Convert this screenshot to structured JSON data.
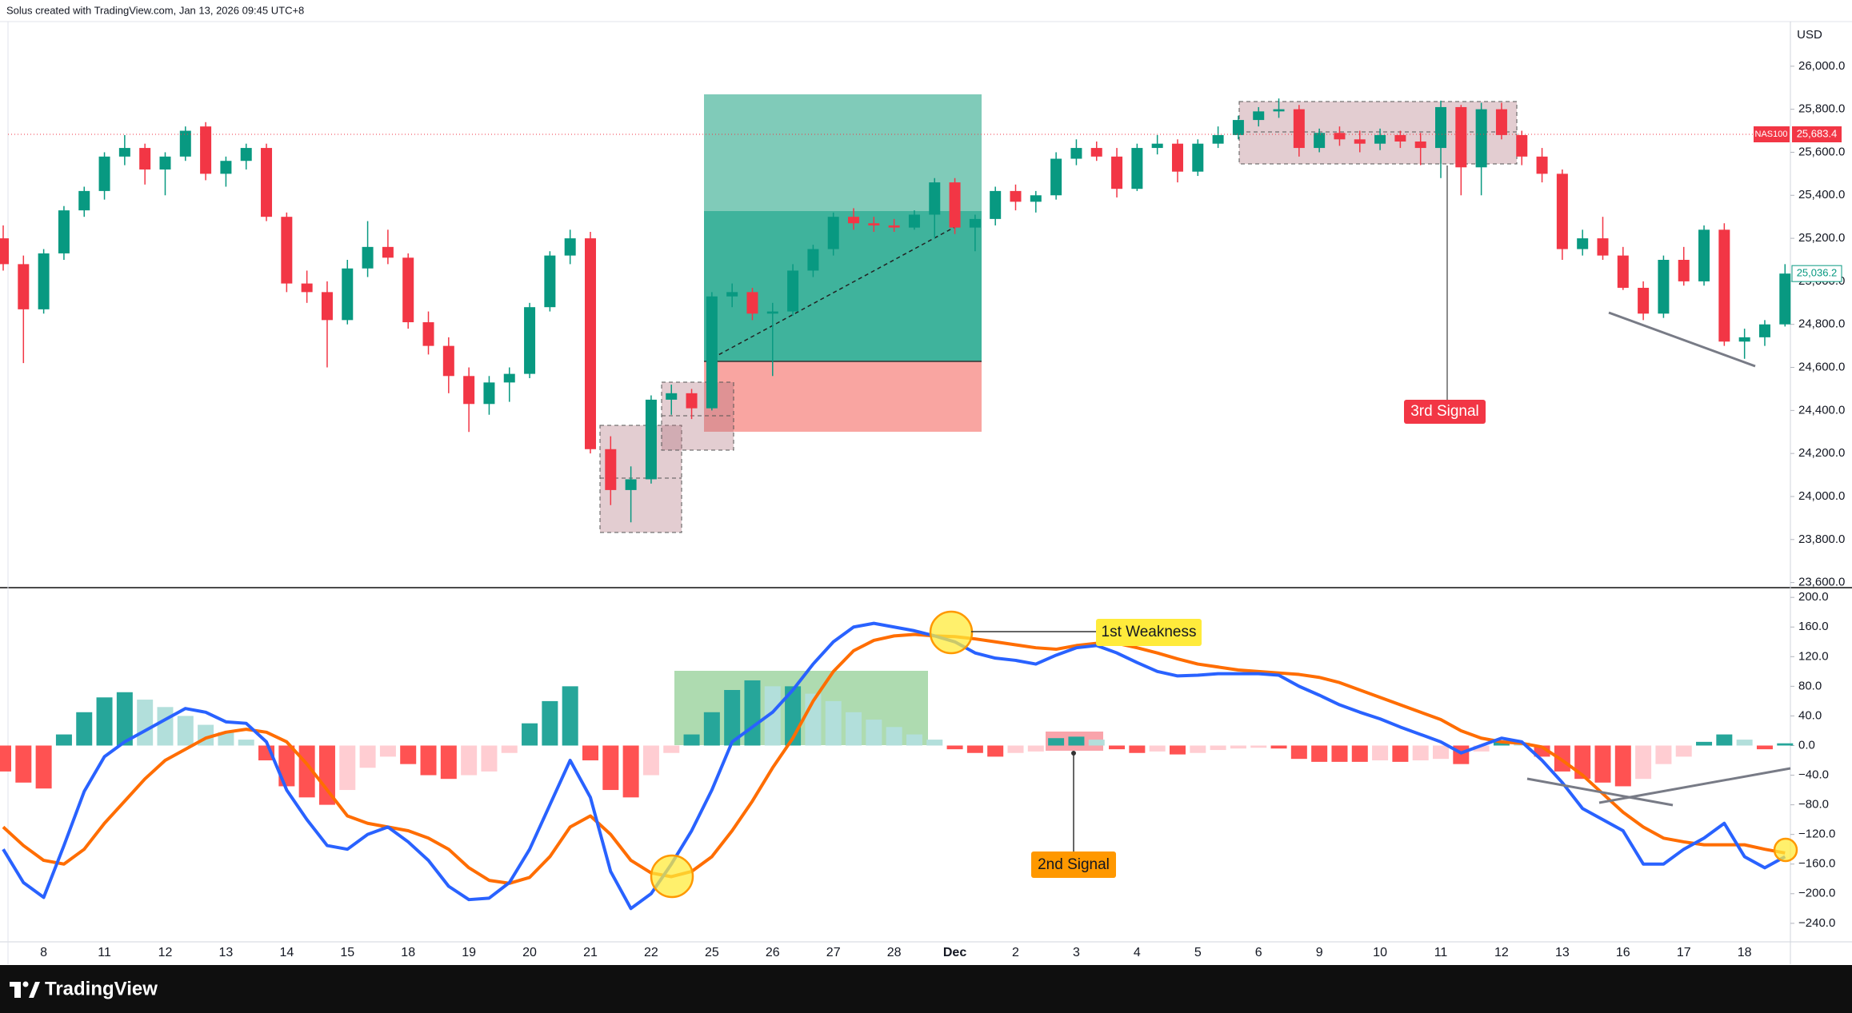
{
  "header": {
    "credit": "Solus created with TradingView.com, Jan 13, 2026 09:45 UTC+8"
  },
  "footer": {
    "brand": "TradingView"
  },
  "chart_data": [
    {
      "type": "candlestick",
      "currency": "USD",
      "symbol": "NAS100",
      "symbol_price": {
        "value": 25683.4,
        "label": "25,683.4"
      },
      "last_price": {
        "value": 25036.2,
        "label": "25,036.2"
      },
      "annotations": [
        "1st Weakness",
        "2nd Signal",
        "3rd Signal"
      ],
      "up_color": "#089981",
      "down_color": "#f23645",
      "categories": [
        null,
        null,
        "8",
        null,
        null,
        "11",
        null,
        null,
        "12",
        null,
        null,
        "13",
        null,
        null,
        "14",
        null,
        null,
        "15",
        null,
        null,
        "18",
        null,
        null,
        "19",
        null,
        null,
        "20",
        null,
        null,
        "21",
        null,
        null,
        "22",
        null,
        null,
        "25",
        null,
        null,
        "26",
        null,
        null,
        "27",
        null,
        null,
        "28",
        null,
        null,
        "Dec",
        null,
        null,
        "2",
        null,
        null,
        "3",
        null,
        null,
        "4",
        null,
        null,
        "5",
        null,
        null,
        "6",
        null,
        null,
        "9",
        null,
        null,
        "10",
        null,
        null,
        "11",
        null,
        null,
        "12",
        null,
        null,
        "13",
        null,
        null,
        "16",
        null,
        null,
        "17",
        null,
        null,
        "18",
        null,
        null
      ],
      "open": [
        25200,
        25080,
        24870,
        25130,
        25330,
        25420,
        25580,
        25620,
        25520,
        25580,
        25720,
        25500,
        25560,
        25620,
        25300,
        24990,
        24950,
        24820,
        25060,
        25160,
        25110,
        24810,
        24700,
        24560,
        24430,
        24530,
        24570,
        24880,
        25120,
        25200,
        24220,
        24030,
        24080,
        24450,
        24480,
        24410,
        24930,
        24950,
        24850,
        24860,
        25050,
        25150,
        25300,
        25270,
        25260,
        25250,
        25310,
        25460,
        25250,
        25290,
        25420,
        25370,
        25400,
        25570,
        25620,
        25580,
        25430,
        25620,
        25640,
        25510,
        25640,
        25680,
        25750,
        25790,
        25800,
        25620,
        25690,
        25660,
        25640,
        25680,
        25650,
        25620,
        25810,
        25530,
        25800,
        25680,
        25580,
        25500,
        25150,
        25200,
        25120,
        24970,
        24850,
        25100,
        25000,
        25240,
        24720,
        24740,
        24800
      ],
      "high": [
        25260,
        25120,
        25150,
        25350,
        25440,
        25600,
        25680,
        25640,
        25600,
        25720,
        25740,
        25580,
        25640,
        25640,
        25320,
        25050,
        25000,
        25100,
        25280,
        25240,
        25130,
        24860,
        24740,
        24600,
        24560,
        24600,
        24900,
        25140,
        25240,
        25230,
        24280,
        24140,
        24470,
        24520,
        24500,
        24950,
        24990,
        24970,
        24900,
        25080,
        25170,
        25320,
        25340,
        25300,
        25290,
        25330,
        25480,
        25480,
        25310,
        25440,
        25450,
        25420,
        25600,
        25660,
        25650,
        25620,
        25640,
        25680,
        25660,
        25660,
        25720,
        25770,
        25810,
        25850,
        25820,
        25710,
        25720,
        25700,
        25710,
        25700,
        25690,
        25840,
        25820,
        25830,
        25830,
        25700,
        25620,
        25520,
        25240,
        25300,
        25160,
        25000,
        25120,
        25160,
        25260,
        25270,
        24780,
        24820,
        25080
      ],
      "low": [
        25050,
        24620,
        24850,
        25100,
        25300,
        25380,
        25540,
        25450,
        25400,
        25560,
        25470,
        25440,
        25520,
        25280,
        24950,
        24900,
        24600,
        24800,
        25020,
        25080,
        24780,
        24660,
        24480,
        24300,
        24380,
        24440,
        24550,
        24860,
        25080,
        24200,
        23960,
        23880,
        24060,
        24380,
        24360,
        24400,
        24880,
        24820,
        24560,
        24840,
        25020,
        25120,
        25240,
        25230,
        25230,
        25240,
        25200,
        25220,
        25140,
        25260,
        25330,
        25320,
        25380,
        25540,
        25560,
        25390,
        25420,
        25590,
        25460,
        25490,
        25620,
        25660,
        25720,
        25760,
        25580,
        25600,
        25630,
        25600,
        25610,
        25620,
        25540,
        25480,
        25400,
        25400,
        25660,
        25540,
        25460,
        25100,
        25120,
        25100,
        24960,
        24820,
        24830,
        24980,
        24980,
        24700,
        24640,
        24700,
        24790
      ],
      "close": [
        25080,
        24870,
        25130,
        25330,
        25420,
        25580,
        25620,
        25520,
        25580,
        25700,
        25500,
        25560,
        25620,
        25300,
        24990,
        24950,
        24820,
        25060,
        25160,
        25110,
        24810,
        24700,
        24560,
        24430,
        24530,
        24570,
        24880,
        25120,
        25200,
        24220,
        24030,
        24080,
        24450,
        24480,
        24410,
        24930,
        24950,
        24850,
        24860,
        25050,
        25150,
        25300,
        25270,
        25260,
        25250,
        25310,
        25460,
        25250,
        25290,
        25420,
        25370,
        25400,
        25570,
        25620,
        25580,
        25430,
        25620,
        25640,
        25510,
        25640,
        25680,
        25750,
        25790,
        25800,
        25620,
        25690,
        25660,
        25640,
        25680,
        25650,
        25620,
        25810,
        25530,
        25800,
        25680,
        25580,
        25500,
        25150,
        25200,
        25120,
        24970,
        24850,
        25100,
        25000,
        25240,
        24720,
        24740,
        24800,
        25036.2
      ],
      "ylim": [
        23580,
        26200
      ],
      "yticks": [
        {
          "value": 23600,
          "label": "23,600.0"
        },
        {
          "value": 23800,
          "label": "23,800.0"
        },
        {
          "value": 24000,
          "label": "24,000.0"
        },
        {
          "value": 24200,
          "label": "24,200.0"
        },
        {
          "value": 24400,
          "label": "24,400.0"
        },
        {
          "value": 24600,
          "label": "24,600.0"
        },
        {
          "value": 24800,
          "label": "24,800.0"
        },
        {
          "value": 25000,
          "label": "25,000.0"
        },
        {
          "value": 25200,
          "label": "25,200.0"
        },
        {
          "value": 25400,
          "label": "25,400.0"
        },
        {
          "value": 25600,
          "label": "25,600.0"
        },
        {
          "value": 25800,
          "label": "25,800.0"
        },
        {
          "value": 26000,
          "label": "26,000.0"
        }
      ]
    },
    {
      "type": "macd",
      "macd_line": {
        "color": "#2962ff",
        "values": [
          -140,
          -185,
          -205,
          -135,
          -62,
          -15,
          5,
          20,
          35,
          50,
          45,
          32,
          30,
          5,
          -60,
          -100,
          -135,
          -140,
          -120,
          -110,
          -130,
          -155,
          -190,
          -208,
          -206,
          -185,
          -140,
          -80,
          -20,
          -70,
          -170,
          -220,
          -200,
          -160,
          -115,
          -60,
          5,
          25,
          45,
          75,
          110,
          140,
          160,
          165,
          160,
          155,
          148,
          140,
          125,
          118,
          115,
          110,
          122,
          132,
          135,
          125,
          112,
          100,
          94,
          95,
          97,
          97,
          97,
          95,
          80,
          68,
          55,
          45,
          36,
          25,
          15,
          5,
          -10,
          0,
          10,
          5,
          -20,
          -50,
          -85,
          -100,
          -115,
          -160,
          -160,
          -140,
          -125,
          -105,
          -150,
          -165,
          -150
        ]
      },
      "signal_line": {
        "color": "#ff6d00",
        "values": [
          -110,
          -135,
          -155,
          -160,
          -140,
          -105,
          -75,
          -45,
          -20,
          -5,
          10,
          18,
          22,
          18,
          5,
          -25,
          -60,
          -95,
          -105,
          -110,
          -115,
          -125,
          -140,
          -165,
          -182,
          -186,
          -178,
          -150,
          -110,
          -95,
          -120,
          -155,
          -172,
          -177,
          -170,
          -150,
          -115,
          -75,
          -30,
          10,
          60,
          100,
          128,
          142,
          148,
          150,
          148,
          147,
          144,
          140,
          136,
          132,
          130,
          135,
          138,
          138,
          132,
          125,
          117,
          110,
          106,
          102,
          100,
          98,
          96,
          92,
          85,
          75,
          65,
          55,
          45,
          35,
          20,
          10,
          5,
          3,
          -2,
          -20,
          -40,
          -65,
          -90,
          -110,
          -125,
          -130,
          -134,
          -134,
          -134,
          -140,
          -145
        ]
      },
      "histogram": {
        "colors": [
          "#26a69a",
          "#b2dfdb",
          "#ff5252",
          "#ffcdd2"
        ],
        "values": [
          -35,
          -50,
          -58,
          15,
          45,
          65,
          72,
          62,
          52,
          40,
          28,
          18,
          8,
          -20,
          -55,
          -70,
          -80,
          -60,
          -30,
          -15,
          -25,
          -40,
          -45,
          -40,
          -35,
          -10,
          30,
          60,
          80,
          -20,
          -60,
          -70,
          -40,
          -10,
          15,
          45,
          75,
          88,
          80,
          80,
          70,
          60,
          45,
          35,
          25,
          15,
          8,
          -5,
          -10,
          -15,
          -10,
          -8,
          10,
          12,
          8,
          -5,
          -10,
          -8,
          -12,
          -10,
          -6,
          -4,
          -3,
          -4,
          -18,
          -22,
          -22,
          -22,
          -20,
          -22,
          -20,
          -18,
          -25,
          -8,
          5,
          4,
          -15,
          -35,
          -45,
          -50,
          -55,
          -45,
          -25,
          -15,
          5,
          15,
          8,
          -5,
          3
        ]
      },
      "ylim": [
        -265,
        211
      ],
      "yticks": [
        {
          "value": 200,
          "label": "200.0"
        },
        {
          "value": 160,
          "label": "160.0"
        },
        {
          "value": 120,
          "label": "120.0"
        },
        {
          "value": 80,
          "label": "80.0"
        },
        {
          "value": 40,
          "label": "40.0"
        },
        {
          "value": 0,
          "label": "0.0"
        },
        {
          "value": -40,
          "label": "−40.0"
        },
        {
          "value": -80,
          "label": "−80.0"
        },
        {
          "value": -120,
          "label": "−120.0"
        },
        {
          "value": -160,
          "label": "−160.0"
        },
        {
          "value": -200,
          "label": "−200.0"
        },
        {
          "value": -240,
          "label": "−240.0"
        }
      ]
    }
  ]
}
